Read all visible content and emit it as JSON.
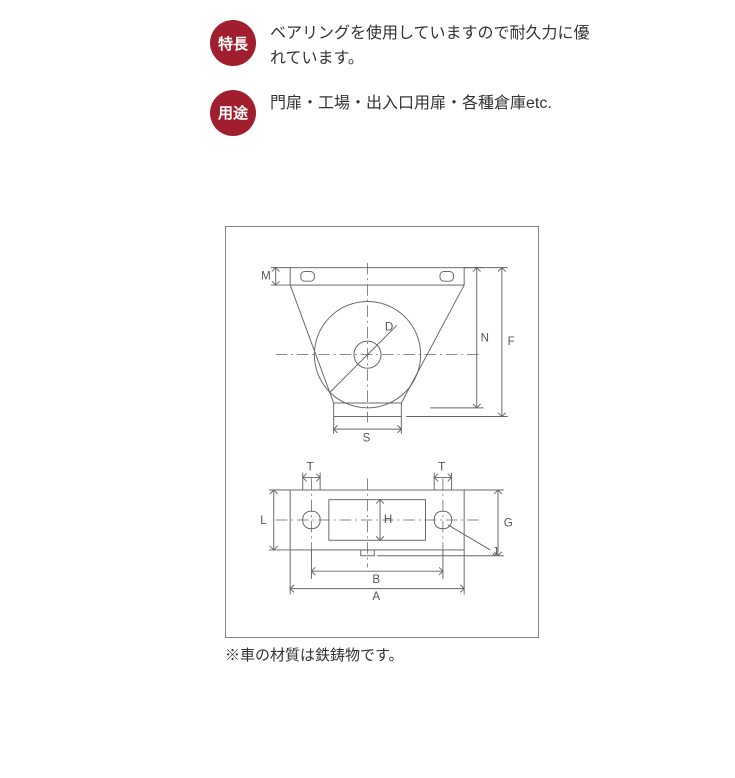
{
  "badges": {
    "feature": {
      "label": "特長",
      "text": "ベアリングを使用していますので耐久力に優れています。"
    },
    "usage": {
      "label": "用途",
      "text": "門扉・工場・出入口用扉・各種倉庫etc."
    }
  },
  "caption": "※車の材質は鉄鋳物です。",
  "diagram": {
    "type": "engineering-drawing",
    "stroke_color": "#666666",
    "background": "#ffffff",
    "box_border": "#888888",
    "dim_labels_side": [
      "M",
      "D",
      "N",
      "F",
      "S"
    ],
    "dim_labels_top": [
      "T",
      "T",
      "L",
      "H",
      "G",
      "B",
      "A",
      "J"
    ],
    "label_fontsize": 12,
    "badge_bg": "#a01e2d",
    "badge_fg": "#ffffff"
  }
}
